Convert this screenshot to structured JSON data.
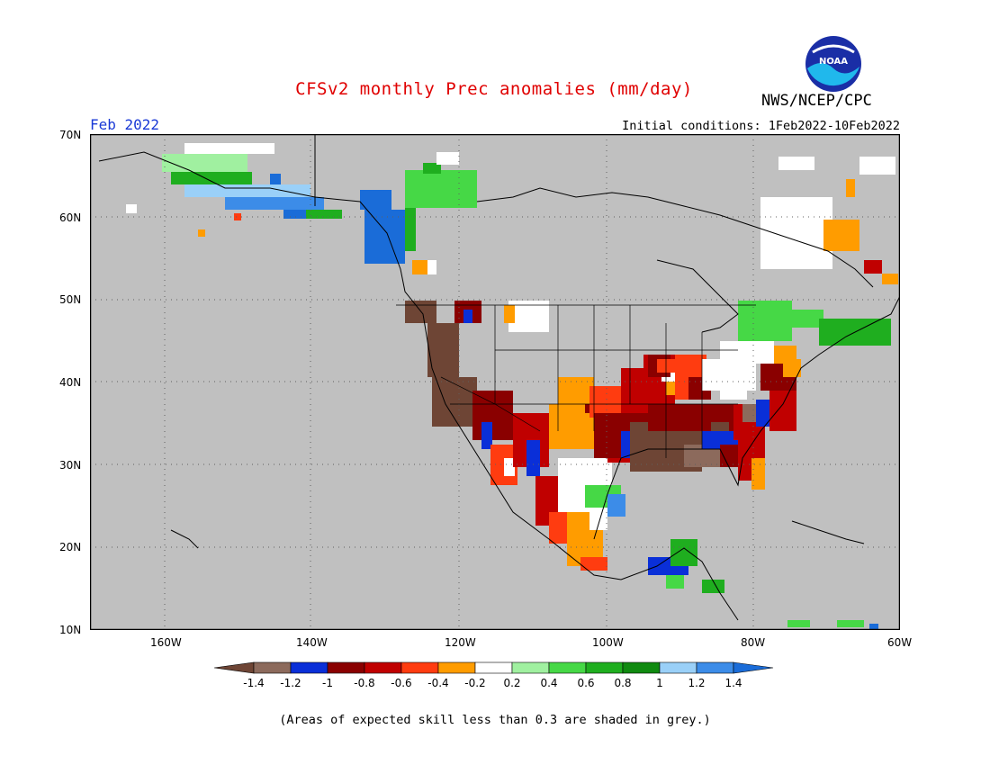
{
  "header": {
    "title": "CFSv2 monthly Prec anomalies (mm/day)",
    "agency": "NWS/NCEP/CPC",
    "logo_text": "NOAA",
    "month": "Feb 2022",
    "initial_conditions": "Initial conditions: 1Feb2022-10Feb2022"
  },
  "map": {
    "lat_labels": [
      "70N",
      "60N",
      "50N",
      "40N",
      "30N",
      "20N",
      "10N"
    ],
    "lon_labels": [
      "160W",
      "140W",
      "120W",
      "100W",
      "80W",
      "60W"
    ],
    "background_color": "#c0c0c0",
    "grid": "dotted"
  },
  "colorbar": {
    "labels": [
      "-1.4",
      "-1.2",
      "-1",
      "-0.8",
      "-0.6",
      "-0.4",
      "-0.2",
      "0.2",
      "0.4",
      "0.6",
      "0.8",
      "1",
      "1.2",
      "1.4"
    ],
    "colors": [
      "#6e4535",
      "#8c6a5c",
      "#0a2fd8",
      "#8a0000",
      "#c00000",
      "#ff3c10",
      "#ff9c00",
      "#ffffff",
      "#a0f0a0",
      "#46d846",
      "#1fae1f",
      "#108a10",
      "#9ad0f8",
      "#3c8ce8",
      "#1a6cd8"
    ]
  },
  "footnote": "(Areas of expected skill less than 0.3 are shaded in grey.)"
}
